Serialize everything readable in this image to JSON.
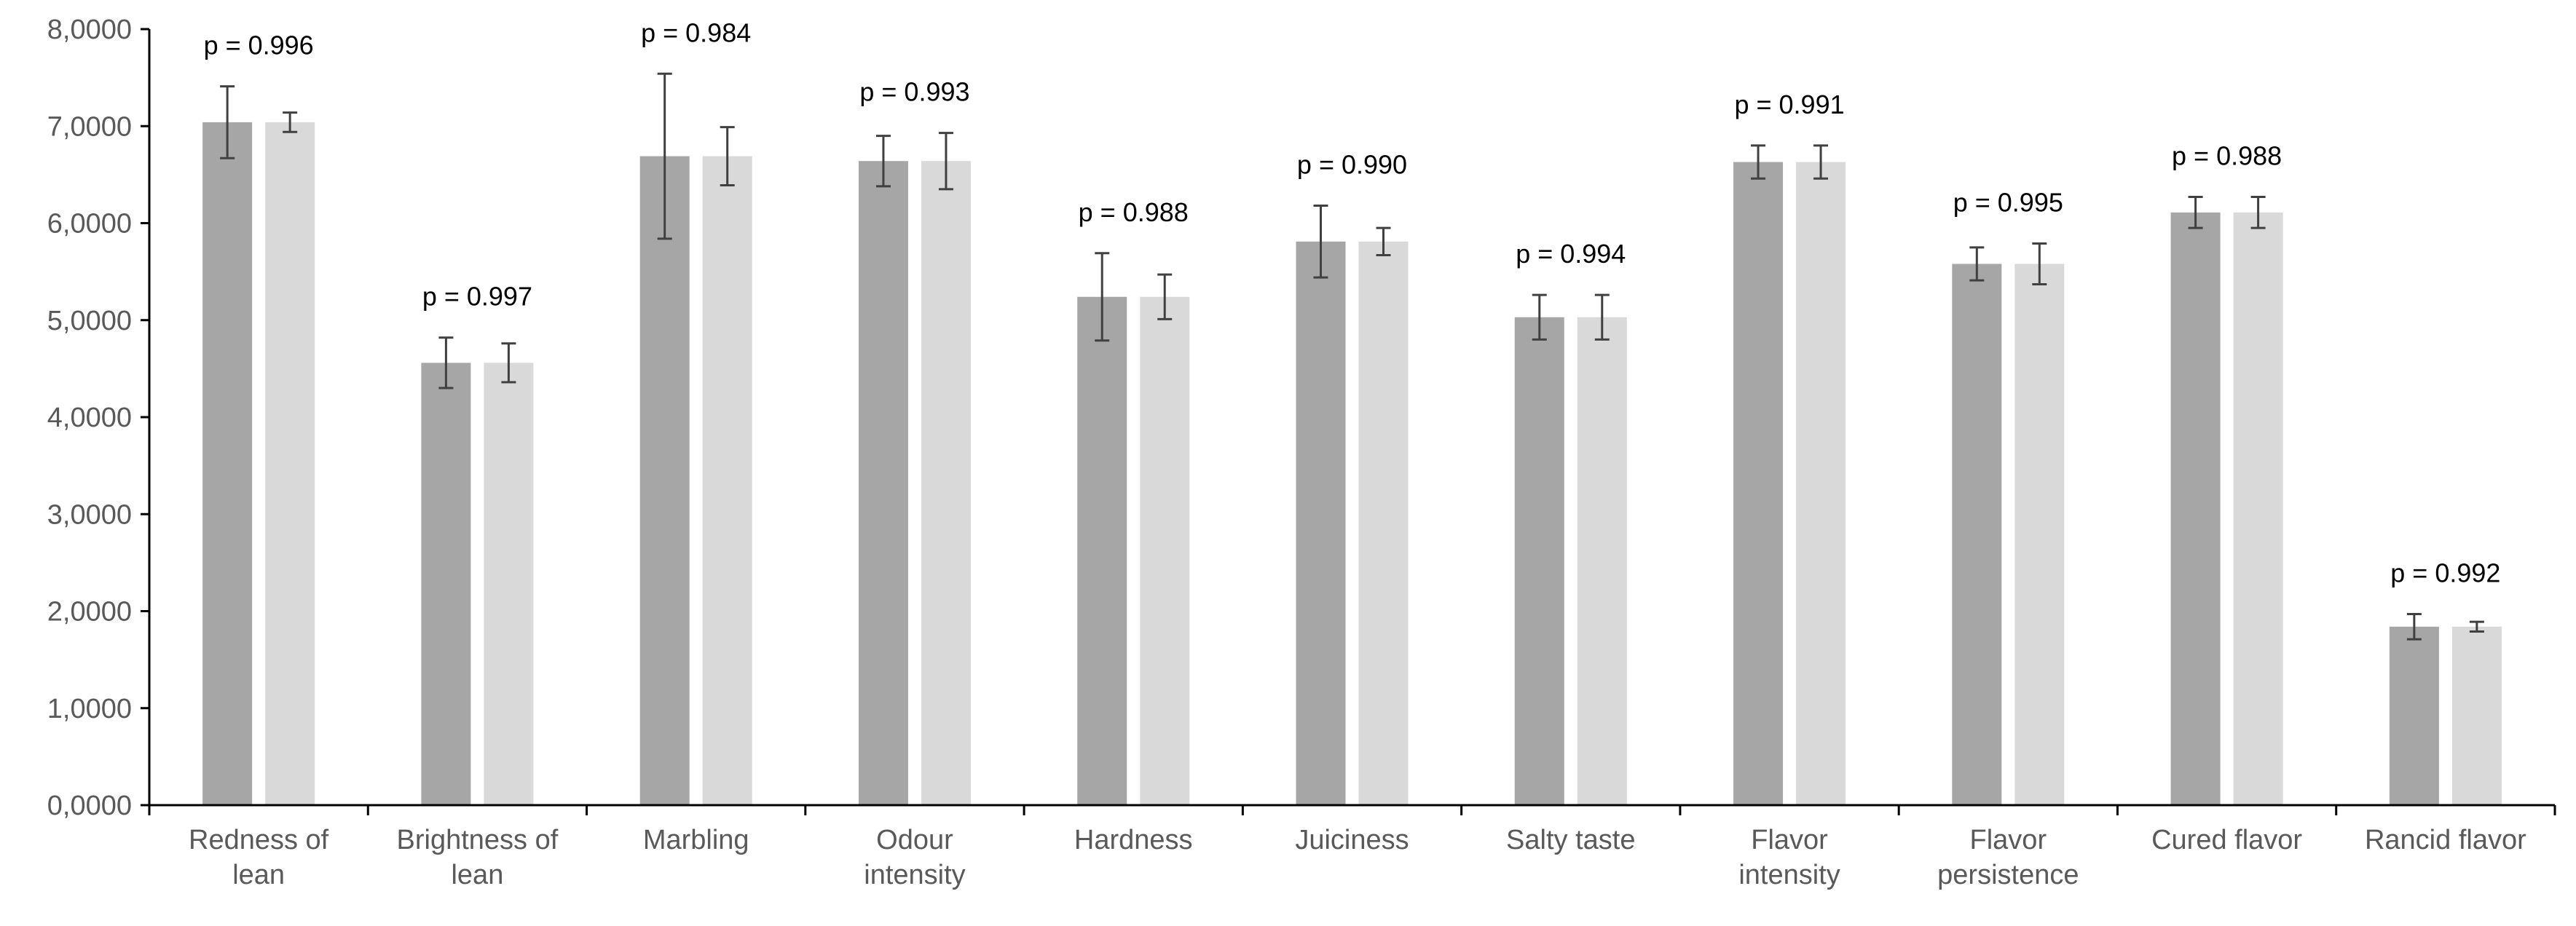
{
  "chart_data": {
    "type": "bar",
    "title": "",
    "xlabel": "",
    "ylabel": "",
    "ylim": [
      0,
      8
    ],
    "yticks": [
      0,
      1,
      2,
      3,
      4,
      5,
      6,
      7,
      8
    ],
    "yticklabels": [
      "0,0000",
      "1,0000",
      "2,0000",
      "3,0000",
      "4,0000",
      "5,0000",
      "6,0000",
      "7,0000",
      "8,0000"
    ],
    "grid": false,
    "categories": [
      [
        "Redness of",
        "lean"
      ],
      [
        "Brightness of",
        "lean"
      ],
      [
        "Marbling"
      ],
      [
        "Odour",
        "intensity"
      ],
      [
        "Hardness"
      ],
      [
        "Juiciness"
      ],
      [
        "Salty taste"
      ],
      [
        "Flavor",
        "intensity"
      ],
      [
        "Flavor",
        "persistence"
      ],
      [
        "Cured flavor"
      ],
      [
        "Rancid flavor"
      ]
    ],
    "series": [
      {
        "color": "#a6a6a6",
        "values": [
          7.04,
          4.56,
          6.69,
          6.64,
          5.24,
          5.81,
          5.03,
          6.63,
          5.58,
          6.11,
          1.84
        ],
        "errors": [
          0.37,
          0.26,
          0.85,
          0.26,
          0.45,
          0.37,
          0.23,
          0.17,
          0.17,
          0.16,
          0.13
        ]
      },
      {
        "color": "#d9d9d9",
        "values": [
          7.04,
          4.56,
          6.69,
          6.64,
          5.24,
          5.81,
          5.03,
          6.63,
          5.58,
          6.11,
          1.84
        ],
        "errors": [
          0.1,
          0.2,
          0.3,
          0.29,
          0.23,
          0.14,
          0.23,
          0.17,
          0.21,
          0.16,
          0.05
        ]
      }
    ],
    "annotations": [
      "p = 0.996",
      "p = 0.997",
      "p = 0.984",
      "p = 0.993",
      "p = 0.988",
      "p = 0.990",
      "p = 0.994",
      "p = 0.991",
      "p = 0.995",
      "p = 0.988",
      "p = 0.992"
    ],
    "axis_color": "#000000",
    "error_bar_color": "#404040"
  }
}
